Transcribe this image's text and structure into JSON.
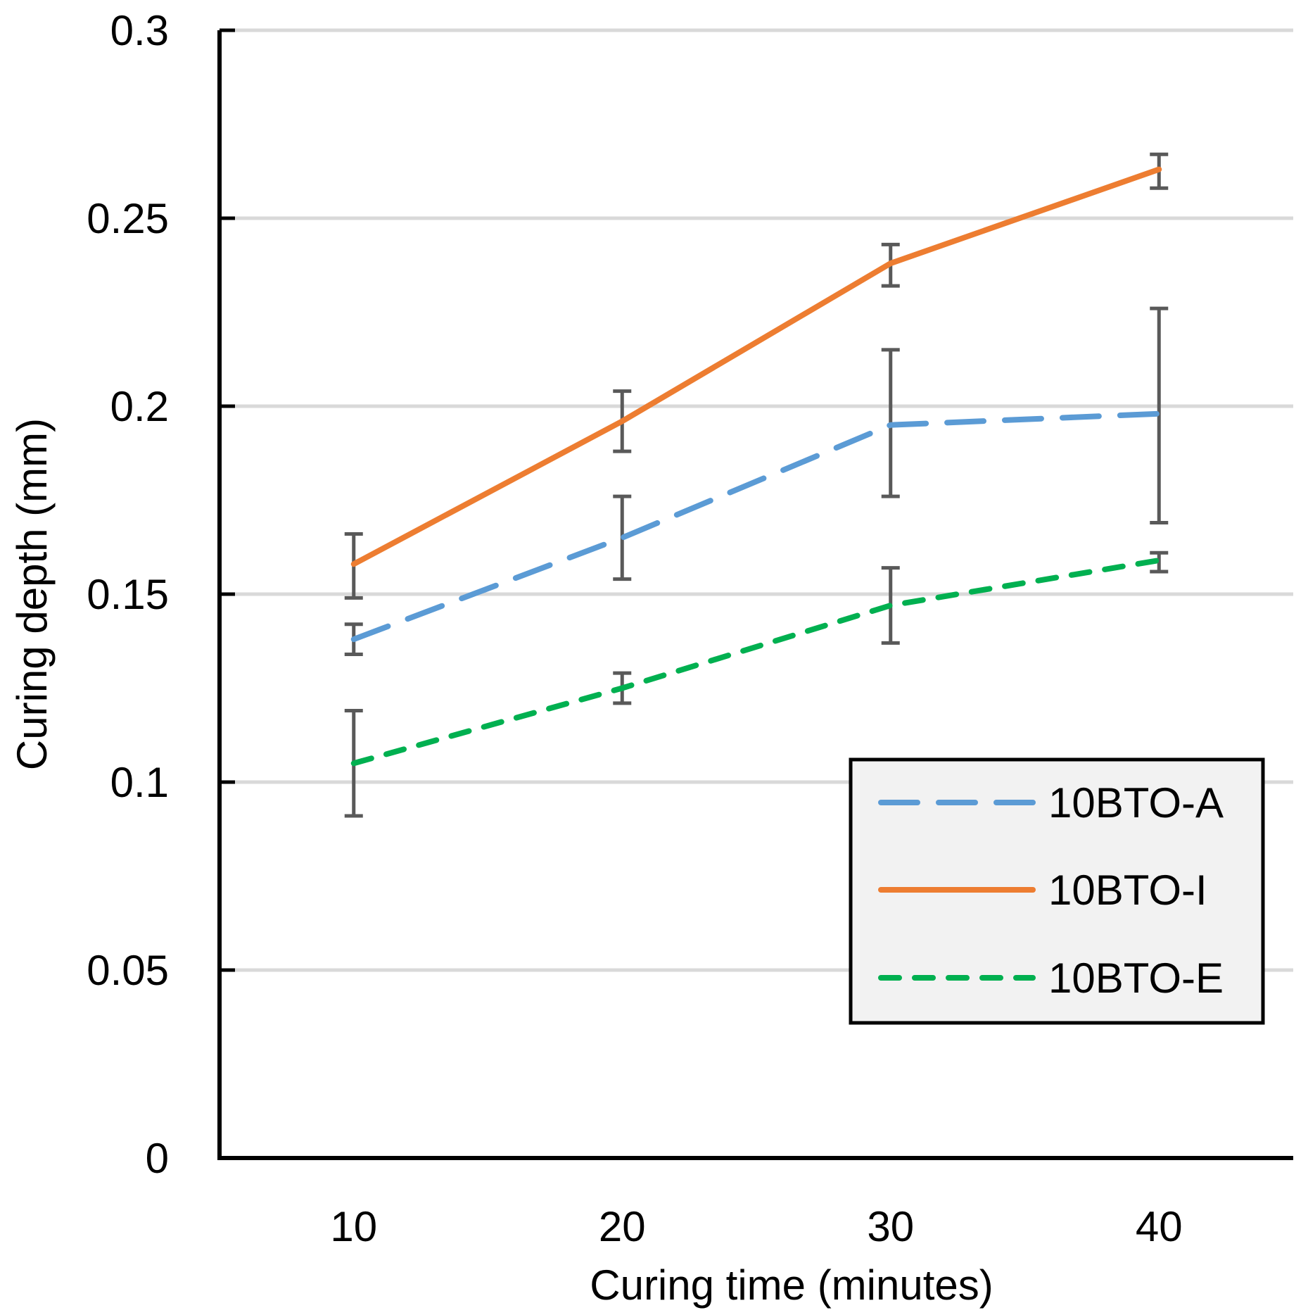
{
  "chart_data": {
    "type": "line",
    "title": "",
    "xlabel": "Curing time (minutes)",
    "ylabel": "Curing depth (mm)",
    "x": [
      10,
      20,
      30,
      40
    ],
    "x_tick_labels": [
      "10",
      "20",
      "30",
      "40"
    ],
    "ylim": [
      0,
      0.3
    ],
    "y_ticks": [
      0,
      0.05,
      0.1,
      0.15,
      0.2,
      0.25,
      0.3
    ],
    "y_tick_labels": [
      "0",
      "0.05",
      "0.1",
      "0.15",
      "0.2",
      "0.25",
      "0.3"
    ],
    "grid": "horizontal",
    "legend_position": "lower-right",
    "series": [
      {
        "name": "10BTO-A",
        "color": "#5B9BD5",
        "line_style": "long-dash",
        "values": [
          0.138,
          0.165,
          0.195,
          0.198
        ],
        "error_low": [
          0.134,
          0.154,
          0.176,
          0.169
        ],
        "error_high": [
          0.142,
          0.176,
          0.215,
          0.226
        ]
      },
      {
        "name": "10BTO-I",
        "color": "#ED7D31",
        "line_style": "solid",
        "values": [
          0.158,
          0.196,
          0.238,
          0.263
        ],
        "error_low": [
          0.149,
          0.188,
          0.232,
          0.258
        ],
        "error_high": [
          0.166,
          0.204,
          0.243,
          0.267
        ]
      },
      {
        "name": "10BTO-E",
        "color": "#00B050",
        "line_style": "short-dash",
        "values": [
          0.105,
          0.125,
          0.147,
          0.159
        ],
        "error_low": [
          0.091,
          0.121,
          0.137,
          0.156
        ],
        "error_high": [
          0.119,
          0.129,
          0.157,
          0.161
        ]
      }
    ]
  }
}
